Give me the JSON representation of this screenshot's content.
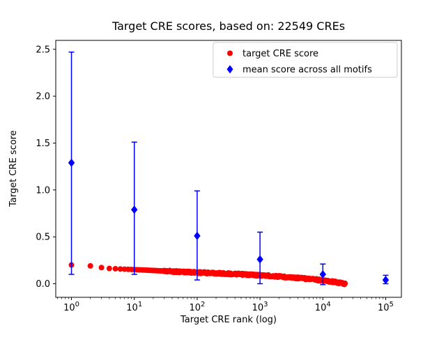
{
  "figure": {
    "background": "#ffffff"
  },
  "chart_data": {
    "type": "scatter",
    "title": "Target CRE scores, based on: 22549 CREs",
    "xlabel": "Target CRE rank (log)",
    "ylabel": "Target CRE score",
    "x_scale": "log",
    "xlim": [
      0.5623,
      177828
    ],
    "xlim_log10": [
      -0.25,
      5.25
    ],
    "ylim": [
      -0.145,
      2.595
    ],
    "x_tick_base": "10",
    "x_tick_values": [
      1,
      10,
      100,
      1000,
      10000,
      100000
    ],
    "x_tick_exponents": [
      "0",
      "1",
      "2",
      "3",
      "4",
      "5"
    ],
    "y_tick_values": [
      0.0,
      0.5,
      1.0,
      1.5,
      2.0,
      2.5
    ],
    "y_tick_labels": [
      "0.0",
      "0.5",
      "1.0",
      "1.5",
      "2.0",
      "2.5"
    ],
    "grid": false,
    "legend": {
      "position": "upper right",
      "frame": true,
      "border_color": "#cccccc"
    },
    "series": [
      {
        "name": "target CRE score",
        "color": "#ff0000",
        "marker": "circle",
        "n_points": 22549,
        "curve_samples": [
          [
            1,
            0.2
          ],
          [
            2,
            0.19
          ],
          [
            3,
            0.172
          ],
          [
            4,
            0.163
          ],
          [
            6,
            0.157
          ],
          [
            10,
            0.151
          ],
          [
            20,
            0.141
          ],
          [
            40,
            0.131
          ],
          [
            100,
            0.12
          ],
          [
            250,
            0.109
          ],
          [
            600,
            0.098
          ],
          [
            1500,
            0.083
          ],
          [
            4000,
            0.062
          ],
          [
            8000,
            0.043
          ],
          [
            15000,
            0.02
          ],
          [
            22549,
            0.0
          ]
        ]
      },
      {
        "name": "mean score across all motifs",
        "color": "#0000ff",
        "marker": "diamond",
        "error_bars": true,
        "points": [
          {
            "x": 1,
            "y": 1.29,
            "y_low": 0.1,
            "y_high": 2.47
          },
          {
            "x": 10,
            "y": 0.79,
            "y_low": 0.1,
            "y_high": 1.51
          },
          {
            "x": 100,
            "y": 0.51,
            "y_low": 0.04,
            "y_high": 0.99
          },
          {
            "x": 1000,
            "y": 0.26,
            "y_low": 0.0,
            "y_high": 0.55
          },
          {
            "x": 10000,
            "y": 0.1,
            "y_low": -0.01,
            "y_high": 0.21
          },
          {
            "x": 100000,
            "y": 0.04,
            "y_low": 0.0,
            "y_high": 0.09
          }
        ]
      }
    ]
  }
}
